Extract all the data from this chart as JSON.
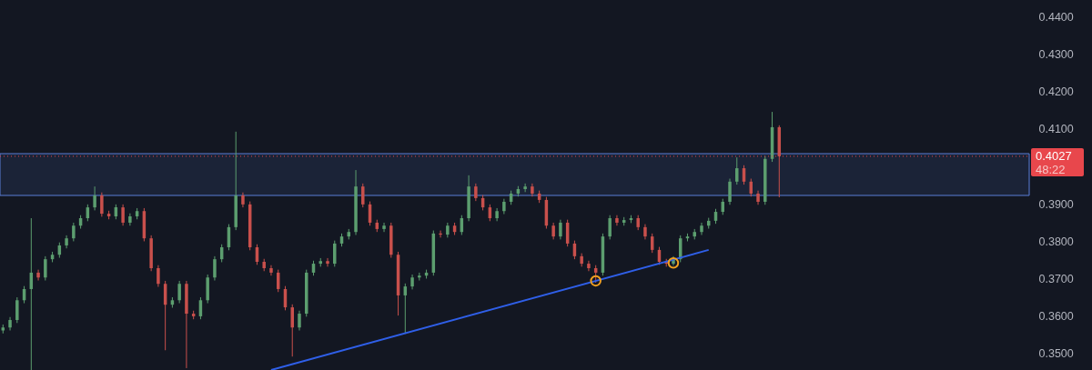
{
  "chart_data": {
    "type": "candlestick",
    "categories": [
      null,
      null,
      null,
      null,
      null,
      null,
      null,
      null,
      null,
      null,
      null,
      null,
      null,
      null,
      null,
      null,
      null,
      null,
      null,
      null,
      null,
      null,
      null,
      null,
      null,
      null,
      null,
      null,
      null,
      null,
      null,
      null,
      null,
      null,
      null,
      null,
      null,
      null,
      null,
      null,
      null,
      null,
      null,
      null,
      null,
      null,
      null,
      null,
      null,
      null,
      null,
      null,
      null,
      null,
      null,
      null,
      null,
      null,
      null,
      null,
      null,
      null,
      null,
      null,
      null,
      null,
      null,
      null,
      null,
      null,
      null,
      null,
      null,
      null,
      null,
      null,
      null,
      null,
      null,
      null,
      null,
      null,
      null,
      null,
      null,
      null,
      null,
      null,
      null,
      null,
      null,
      null,
      null,
      null,
      null,
      null,
      null,
      null,
      null,
      null,
      null,
      null,
      null,
      null,
      null,
      null,
      null,
      null,
      null,
      null,
      null,
      null,
      null,
      null,
      null,
      null,
      null,
      null,
      null,
      null,
      null,
      null,
      null,
      null,
      null,
      null,
      null,
      null,
      null,
      null,
      null,
      null,
      null,
      null,
      null,
      null,
      null,
      null,
      null,
      null,
      null,
      null,
      null,
      null,
      null,
      null
    ],
    "ohlc": [
      [
        0.356,
        0.3576,
        0.3552,
        0.3568
      ],
      [
        0.3568,
        0.3596,
        0.356,
        0.3588
      ],
      [
        0.3588,
        0.3649,
        0.358,
        0.3641
      ],
      [
        0.3641,
        0.3679,
        0.3633,
        0.3671
      ],
      [
        0.3671,
        0.3861,
        0.3454,
        0.3715
      ],
      [
        0.3715,
        0.3723,
        0.3694,
        0.3702
      ],
      [
        0.3702,
        0.3759,
        0.3694,
        0.3751
      ],
      [
        0.3751,
        0.3771,
        0.3743,
        0.3763
      ],
      [
        0.3763,
        0.3796,
        0.3755,
        0.3788
      ],
      [
        0.3788,
        0.3815,
        0.378,
        0.3807
      ],
      [
        0.3807,
        0.3849,
        0.3799,
        0.3841
      ],
      [
        0.3841,
        0.3869,
        0.3833,
        0.3861
      ],
      [
        0.3861,
        0.3898,
        0.3853,
        0.389
      ],
      [
        0.389,
        0.3946,
        0.3882,
        0.3922
      ],
      [
        0.3922,
        0.393,
        0.3865,
        0.3873
      ],
      [
        0.3873,
        0.3881,
        0.3858,
        0.3866
      ],
      [
        0.3866,
        0.3898,
        0.3858,
        0.389
      ],
      [
        0.389,
        0.3898,
        0.3841,
        0.3849
      ],
      [
        0.3849,
        0.3874,
        0.3841,
        0.3866
      ],
      [
        0.3866,
        0.3888,
        0.3858,
        0.388
      ],
      [
        0.388,
        0.3888,
        0.3799,
        0.3807
      ],
      [
        0.3807,
        0.3815,
        0.3719,
        0.3727
      ],
      [
        0.3727,
        0.3735,
        0.3677,
        0.3685
      ],
      [
        0.3685,
        0.3693,
        0.3507,
        0.3629
      ],
      [
        0.3629,
        0.3649,
        0.3621,
        0.3641
      ],
      [
        0.3641,
        0.3693,
        0.3633,
        0.3685
      ],
      [
        0.3685,
        0.3693,
        0.3459,
        0.3605
      ],
      [
        0.3605,
        0.3613,
        0.359,
        0.3598
      ],
      [
        0.3598,
        0.3649,
        0.359,
        0.3641
      ],
      [
        0.3641,
        0.371,
        0.3633,
        0.3702
      ],
      [
        0.3702,
        0.3759,
        0.3694,
        0.3751
      ],
      [
        0.3751,
        0.3791,
        0.3743,
        0.3783
      ],
      [
        0.3783,
        0.3845,
        0.3775,
        0.3837
      ],
      [
        0.3837,
        0.4093,
        0.3829,
        0.3922
      ],
      [
        0.3922,
        0.393,
        0.389,
        0.3898
      ],
      [
        0.3898,
        0.3906,
        0.3775,
        0.3783
      ],
      [
        0.3783,
        0.3791,
        0.3736,
        0.3744
      ],
      [
        0.3744,
        0.3752,
        0.3719,
        0.3727
      ],
      [
        0.3727,
        0.3735,
        0.3707,
        0.3715
      ],
      [
        0.3715,
        0.3723,
        0.3663,
        0.3671
      ],
      [
        0.3671,
        0.3679,
        0.3614,
        0.3622
      ],
      [
        0.3622,
        0.363,
        0.349,
        0.3568
      ],
      [
        0.3568,
        0.3613,
        0.356,
        0.3605
      ],
      [
        0.3605,
        0.3723,
        0.3597,
        0.3715
      ],
      [
        0.3715,
        0.3747,
        0.3707,
        0.3739
      ],
      [
        0.3739,
        0.3754,
        0.3731,
        0.3746
      ],
      [
        0.3746,
        0.3754,
        0.3731,
        0.3739
      ],
      [
        0.3739,
        0.3801,
        0.3731,
        0.3793
      ],
      [
        0.3793,
        0.382,
        0.3785,
        0.3812
      ],
      [
        0.3812,
        0.3832,
        0.3804,
        0.3824
      ],
      [
        0.3824,
        0.399,
        0.3816,
        0.3946
      ],
      [
        0.3946,
        0.3954,
        0.389,
        0.3898
      ],
      [
        0.3898,
        0.3906,
        0.3841,
        0.3849
      ],
      [
        0.3849,
        0.3857,
        0.3824,
        0.3832
      ],
      [
        0.3832,
        0.3849,
        0.3824,
        0.3841
      ],
      [
        0.3841,
        0.3849,
        0.3755,
        0.3763
      ],
      [
        0.3763,
        0.3771,
        0.36,
        0.3654
      ],
      [
        0.3654,
        0.3686,
        0.3551,
        0.3678
      ],
      [
        0.3678,
        0.371,
        0.367,
        0.3702
      ],
      [
        0.3702,
        0.3715,
        0.3694,
        0.3707
      ],
      [
        0.3707,
        0.3723,
        0.3699,
        0.3715
      ],
      [
        0.3715,
        0.3828,
        0.3707,
        0.382
      ],
      [
        0.382,
        0.3828,
        0.3809,
        0.3817
      ],
      [
        0.3817,
        0.3849,
        0.3809,
        0.3841
      ],
      [
        0.3841,
        0.3849,
        0.3816,
        0.3824
      ],
      [
        0.3824,
        0.3869,
        0.3816,
        0.3861
      ],
      [
        0.3861,
        0.3976,
        0.3853,
        0.3946
      ],
      [
        0.3946,
        0.3954,
        0.3907,
        0.3915
      ],
      [
        0.3915,
        0.3923,
        0.3882,
        0.389
      ],
      [
        0.389,
        0.3898,
        0.3853,
        0.3861
      ],
      [
        0.3861,
        0.3888,
        0.3853,
        0.388
      ],
      [
        0.388,
        0.3913,
        0.3872,
        0.3905
      ],
      [
        0.3905,
        0.3935,
        0.3897,
        0.3927
      ],
      [
        0.3927,
        0.3947,
        0.3919,
        0.3939
      ],
      [
        0.3939,
        0.3954,
        0.3931,
        0.3946
      ],
      [
        0.3946,
        0.3954,
        0.3919,
        0.3927
      ],
      [
        0.3927,
        0.3935,
        0.3902,
        0.391
      ],
      [
        0.391,
        0.3918,
        0.3833,
        0.3841
      ],
      [
        0.3841,
        0.3849,
        0.3804,
        0.3812
      ],
      [
        0.3812,
        0.3857,
        0.3804,
        0.3849
      ],
      [
        0.3849,
        0.3857,
        0.3785,
        0.3793
      ],
      [
        0.3793,
        0.3801,
        0.3751,
        0.3759
      ],
      [
        0.3759,
        0.3767,
        0.3731,
        0.3739
      ],
      [
        0.3739,
        0.3747,
        0.3719,
        0.3727
      ],
      [
        0.3727,
        0.3735,
        0.3688,
        0.3715
      ],
      [
        0.3715,
        0.382,
        0.3707,
        0.3812
      ],
      [
        0.3812,
        0.3869,
        0.3804,
        0.3861
      ],
      [
        0.3861,
        0.3869,
        0.3841,
        0.3849
      ],
      [
        0.3849,
        0.3864,
        0.3841,
        0.3856
      ],
      [
        0.3856,
        0.3869,
        0.3848,
        0.3861
      ],
      [
        0.3861,
        0.3869,
        0.3829,
        0.3837
      ],
      [
        0.3837,
        0.3845,
        0.3804,
        0.3812
      ],
      [
        0.3812,
        0.382,
        0.3768,
        0.3776
      ],
      [
        0.3776,
        0.3784,
        0.3736,
        0.3744
      ],
      [
        0.3744,
        0.3752,
        0.3731,
        0.3739
      ],
      [
        0.3739,
        0.3759,
        0.3734,
        0.3751
      ],
      [
        0.3751,
        0.3815,
        0.3743,
        0.3807
      ],
      [
        0.3807,
        0.382,
        0.3799,
        0.3812
      ],
      [
        0.3812,
        0.3832,
        0.3804,
        0.3824
      ],
      [
        0.3824,
        0.3849,
        0.3816,
        0.3841
      ],
      [
        0.3841,
        0.3862,
        0.3833,
        0.3854
      ],
      [
        0.3854,
        0.3886,
        0.3846,
        0.3878
      ],
      [
        0.3878,
        0.3913,
        0.387,
        0.3905
      ],
      [
        0.3905,
        0.3967,
        0.3897,
        0.3959
      ],
      [
        0.3959,
        0.4024,
        0.3951,
        0.3995
      ],
      [
        0.3995,
        0.4003,
        0.3951,
        0.3959
      ],
      [
        0.3959,
        0.3967,
        0.3919,
        0.3927
      ],
      [
        0.3927,
        0.3935,
        0.3897,
        0.3905
      ],
      [
        0.3905,
        0.4028,
        0.3897,
        0.402
      ],
      [
        0.402,
        0.4146,
        0.4012,
        0.4105
      ],
      [
        0.4105,
        0.411,
        0.3917,
        0.4027
      ],
      null,
      null,
      null,
      null,
      null,
      null,
      null,
      null,
      null,
      null,
      null,
      null,
      null,
      null,
      null,
      null,
      null,
      null,
      null,
      null,
      null,
      null,
      null,
      null,
      null,
      null,
      null,
      null,
      null,
      null,
      null,
      null,
      null,
      null,
      null
    ],
    "series": [
      {
        "type": "line",
        "color": "#2f5fe8",
        "values": [
          null,
          null,
          null,
          null,
          null,
          null,
          null,
          null,
          null,
          null,
          null,
          null,
          null,
          null,
          null,
          null,
          null,
          null,
          null,
          null,
          null,
          null,
          null,
          null,
          null,
          null,
          null,
          null,
          null,
          null,
          null,
          null,
          null,
          null,
          null,
          null,
          null,
          null,
          0.3454,
          null,
          null,
          null,
          null,
          null,
          null,
          null,
          null,
          null,
          null,
          null,
          null,
          null,
          null,
          null,
          null,
          null,
          null,
          null,
          null,
          null,
          null,
          null,
          null,
          null,
          null,
          null,
          null,
          null,
          null,
          null,
          null,
          null,
          null,
          null,
          null,
          null,
          null,
          null,
          null,
          null,
          null,
          null,
          null,
          null,
          null,
          null,
          null,
          null,
          null,
          null,
          null,
          null,
          null,
          null,
          null,
          null,
          null,
          null,
          null,
          null,
          0.3776,
          null,
          null,
          null,
          null,
          null,
          null,
          null,
          null,
          null,
          null,
          null,
          null,
          null,
          null,
          null,
          null,
          null,
          null,
          null,
          null,
          null,
          null,
          null,
          null,
          null,
          null,
          null,
          null,
          null,
          null,
          null,
          null,
          null,
          null,
          null,
          null,
          null,
          null,
          null,
          null,
          null,
          null,
          null,
          null,
          null
        ]
      },
      {
        "type": "scatter",
        "color": "#f0a020",
        "marker": "circle",
        "values": [
          null,
          null,
          null,
          null,
          null,
          null,
          null,
          null,
          null,
          null,
          null,
          null,
          null,
          null,
          null,
          null,
          null,
          null,
          null,
          null,
          null,
          null,
          null,
          null,
          null,
          null,
          null,
          null,
          null,
          null,
          null,
          null,
          null,
          null,
          null,
          null,
          null,
          null,
          null,
          null,
          null,
          null,
          null,
          null,
          null,
          null,
          null,
          null,
          null,
          null,
          null,
          null,
          null,
          null,
          null,
          null,
          null,
          null,
          null,
          null,
          null,
          null,
          null,
          null,
          null,
          null,
          null,
          null,
          null,
          null,
          null,
          null,
          null,
          null,
          null,
          null,
          null,
          null,
          null,
          null,
          null,
          null,
          null,
          null,
          0.3693,
          null,
          null,
          null,
          null,
          null,
          null,
          null,
          null,
          null,
          null,
          0.3741,
          null,
          null,
          null,
          null,
          null,
          null,
          null,
          null,
          null,
          null,
          null,
          null,
          null,
          null,
          null,
          null,
          null,
          null,
          null,
          null,
          null,
          null,
          null,
          null,
          null,
          null,
          null,
          null,
          null,
          null,
          null,
          null,
          null,
          null,
          null,
          null,
          null,
          null,
          null,
          null,
          null,
          null,
          null,
          null,
          null,
          null,
          null,
          null,
          null,
          null
        ]
      }
    ],
    "ylim": [
      0.3454,
      0.4446
    ],
    "yticks": [
      {
        "value": 0.35,
        "label": "0.3500"
      },
      {
        "value": 0.36,
        "label": "0.3600"
      },
      {
        "value": 0.37,
        "label": "0.3700"
      },
      {
        "value": 0.38,
        "label": "0.3800"
      },
      {
        "value": 0.39,
        "label": "0.3900"
      },
      {
        "value": 0.41,
        "label": "0.4100"
      },
      {
        "value": 0.42,
        "label": "0.4200"
      },
      {
        "value": 0.43,
        "label": "0.4300"
      },
      {
        "value": 0.44,
        "label": "0.4400"
      }
    ],
    "tick_labels": "y",
    "bands": [
      {
        "axis": "y",
        "from": 0.3922,
        "to": 0.4034,
        "color": "#5b7fd8"
      }
    ],
    "ref_lines": [
      {
        "axis": "y",
        "value": 0.4027,
        "label": "0.4027",
        "color": "#e8474c",
        "line_style": "dotted"
      }
    ],
    "annotations": [
      "48:22"
    ]
  }
}
